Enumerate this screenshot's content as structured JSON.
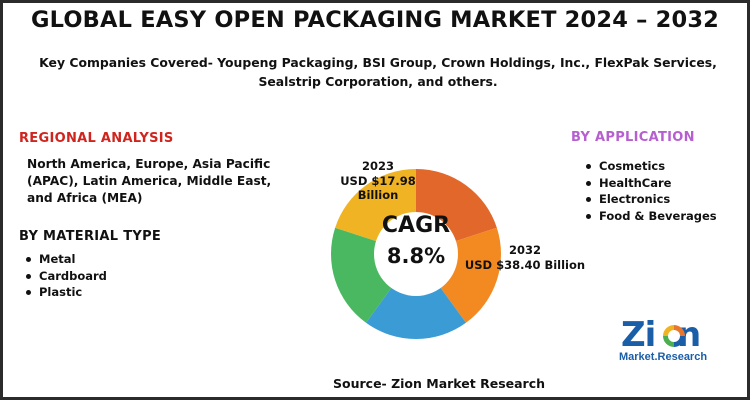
{
  "title": "GLOBAL EASY OPEN PACKAGING MARKET 2024 – 2032",
  "subtitle": "Key Companies Covered- Youpeng Packaging, BSI Group, Crown Holdings, Inc., FlexPak Services, Sealstrip Corporation, and others.",
  "regional": {
    "heading": "REGIONAL ANALYSIS",
    "text": "North America, Europe, Asia Pacific (APAC), Latin America, Middle East, and Africa (MEA)"
  },
  "material": {
    "heading": "BY MATERIAL TYPE",
    "items": [
      "Metal",
      "Cardboard",
      "Plastic"
    ]
  },
  "application": {
    "heading": "BY APPLICATION",
    "items": [
      "Cosmetics",
      "HealthCare",
      "Electronics",
      "Food & Beverages"
    ]
  },
  "chart_data": {
    "type": "pie",
    "style": "donut",
    "center_label": "CAGR",
    "center_value": "8.8%",
    "slices": [
      {
        "color": "#e2672a",
        "value": 20
      },
      {
        "color": "#f28a21",
        "value": 20
      },
      {
        "color": "#3a9bd5",
        "value": 20
      },
      {
        "color": "#4ab860",
        "value": 20
      },
      {
        "color": "#f0b323",
        "value": 20
      }
    ],
    "annotations": {
      "start_year": "2023",
      "start_value": "USD $17.98",
      "start_unit": "Billion",
      "end_year": "2032",
      "end_value": "USD $38.40 Billion"
    }
  },
  "source": "Source- Zion Market Research",
  "logo": {
    "main": "Zion",
    "sub": "Market.Research"
  }
}
